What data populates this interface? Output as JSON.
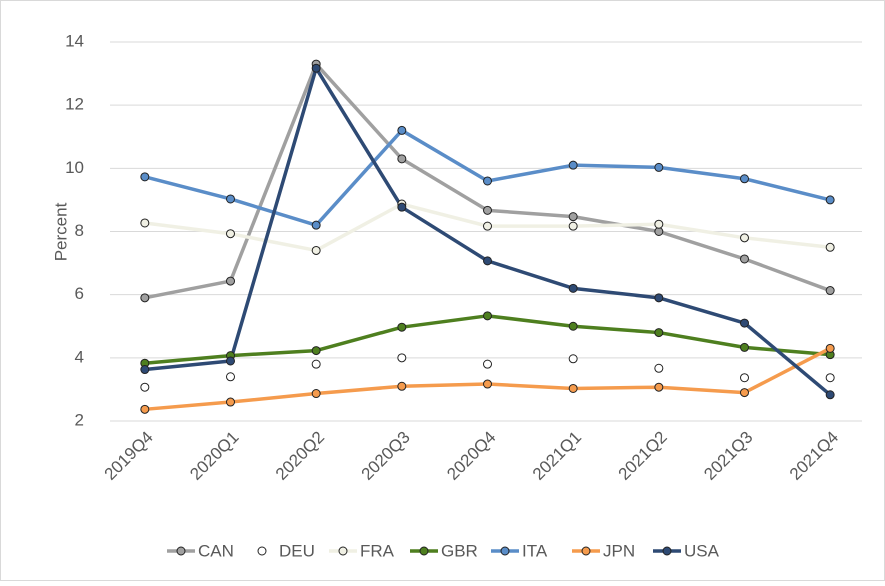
{
  "chart_data": {
    "type": "line",
    "y_label": "Percent",
    "categories": [
      "2019Q4",
      "2020Q1",
      "2020Q2",
      "2020Q3",
      "2020Q4",
      "2021Q1",
      "2021Q2",
      "2021Q3",
      "2021Q4"
    ],
    "series": [
      {
        "name": "CAN",
        "color": "#a0a0a0",
        "values": [
          5.9,
          6.43,
          13.3,
          10.3,
          8.67,
          8.47,
          8.0,
          7.13,
          6.13
        ]
      },
      {
        "name": "DEU",
        "color": "#ffffff",
        "line": false,
        "values": [
          3.07,
          3.4,
          3.8,
          4.0,
          3.8,
          3.97,
          3.67,
          3.37,
          3.37
        ]
      },
      {
        "name": "FRA",
        "color": "#f0f0e4",
        "values": [
          8.27,
          7.93,
          7.4,
          8.87,
          8.17,
          8.17,
          8.23,
          7.8,
          7.5
        ]
      },
      {
        "name": "GBR",
        "color": "#4e7f1f",
        "values": [
          3.83,
          4.07,
          4.23,
          4.97,
          5.33,
          5.0,
          4.8,
          4.33,
          4.1
        ]
      },
      {
        "name": "ITA",
        "color": "#5a8dc8",
        "values": [
          9.73,
          9.03,
          8.2,
          11.2,
          9.6,
          10.1,
          10.03,
          9.67,
          9.0
        ]
      },
      {
        "name": "JPN",
        "color": "#f59b4d",
        "values": [
          2.37,
          2.6,
          2.87,
          3.1,
          3.17,
          3.03,
          3.07,
          2.9,
          4.3
        ]
      },
      {
        "name": "USA",
        "color": "#2e4a74",
        "values": [
          3.63,
          3.9,
          13.17,
          8.77,
          7.07,
          6.2,
          5.9,
          5.1,
          2.83
        ]
      }
    ],
    "ylim": [
      2,
      14
    ],
    "yticks": [
      2,
      4,
      6,
      8,
      10,
      12,
      14
    ],
    "grid": true,
    "legend": "bottom"
  }
}
